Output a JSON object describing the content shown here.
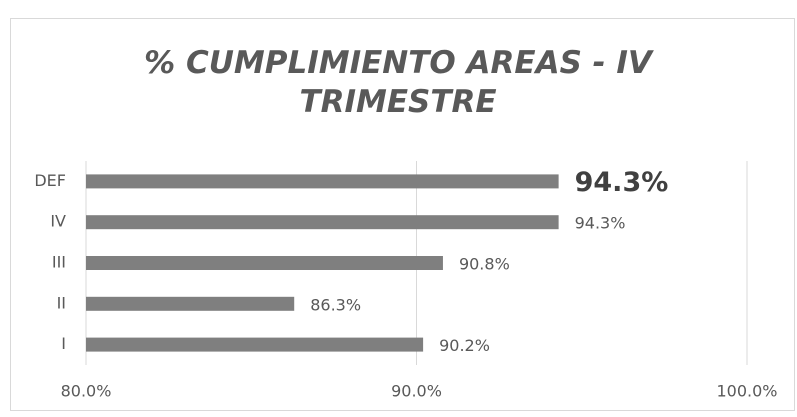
{
  "chart_data": {
    "type": "hbar",
    "title": "% CUMPLIMIENTO AREAS - IV TRIMESTRE",
    "categories": [
      "DEF",
      "IV",
      "III",
      "II",
      "I"
    ],
    "values": [
      94.3,
      94.3,
      90.8,
      86.3,
      90.2
    ],
    "value_labels": [
      "94.3%",
      "94.3%",
      "90.8%",
      "86.3%",
      "90.2%"
    ],
    "color": "#7f7f7f",
    "xlim": [
      80,
      100
    ],
    "xticks": [
      {
        "value": 80,
        "label": "80.0%"
      },
      {
        "value": 90,
        "label": "90.0%"
      },
      {
        "value": 100,
        "label": "100.0%"
      }
    ],
    "grid": true
  }
}
